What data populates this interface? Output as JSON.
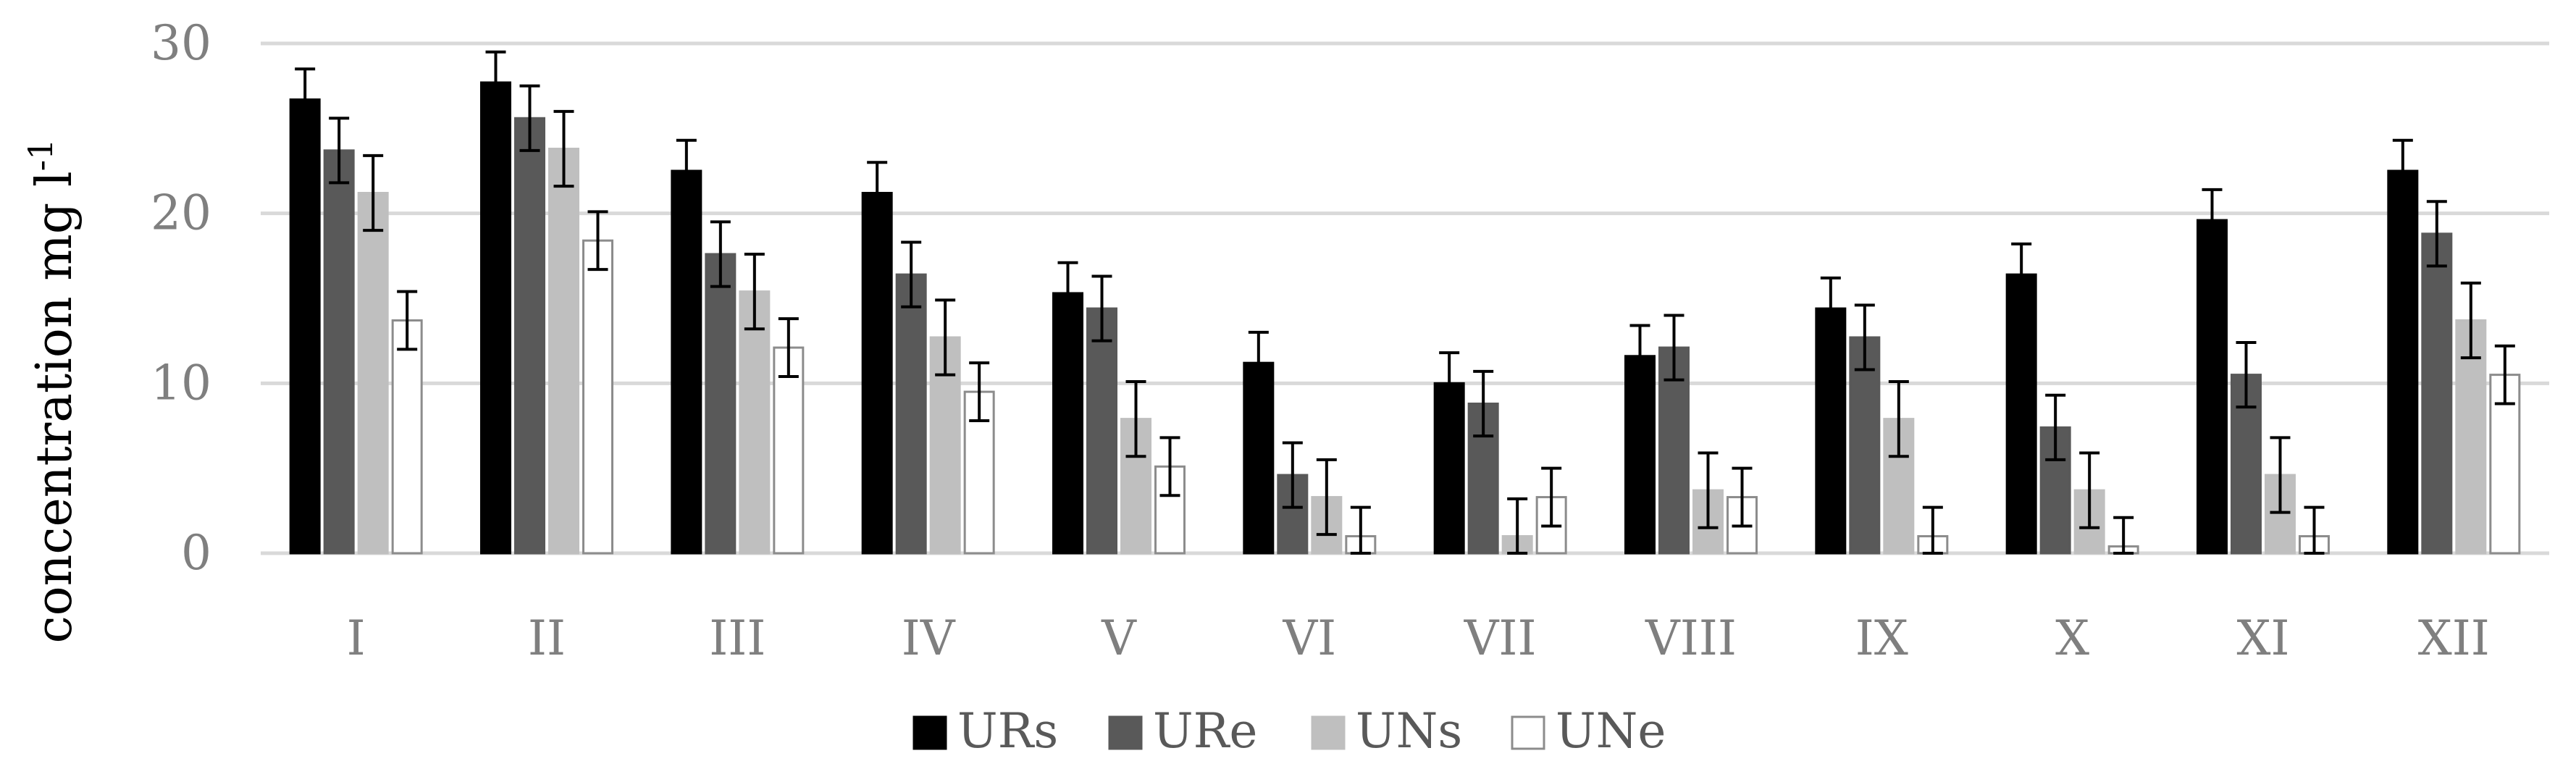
{
  "chart_data": {
    "type": "bar",
    "categories": [
      "I",
      "II",
      "III",
      "IV",
      "V",
      "VI",
      "VII",
      "VIII",
      "IX",
      "X",
      "XI",
      "XII"
    ],
    "series": [
      {
        "name": "URs",
        "color": "#000000",
        "border": "#000000",
        "values": [
          26.7,
          27.7,
          22.5,
          21.2,
          15.3,
          11.2,
          10.0,
          11.6,
          14.4,
          16.4,
          19.6,
          22.5
        ],
        "errors": [
          1.8,
          1.8,
          1.8,
          1.8,
          1.8,
          1.8,
          1.8,
          1.8,
          1.8,
          1.8,
          1.8,
          1.8
        ]
      },
      {
        "name": "URe",
        "color": "#595959",
        "border": "#595959",
        "values": [
          23.7,
          25.6,
          17.6,
          16.4,
          14.4,
          4.6,
          8.8,
          12.1,
          12.7,
          7.4,
          10.5,
          18.8
        ],
        "errors": [
          1.9,
          1.9,
          1.9,
          1.9,
          1.9,
          1.9,
          1.9,
          1.9,
          1.9,
          1.9,
          1.9,
          1.9
        ]
      },
      {
        "name": "UNs",
        "color": "#bfbfbf",
        "border": "#bfbfbf",
        "values": [
          21.2,
          23.8,
          15.4,
          12.7,
          7.9,
          3.3,
          1.0,
          3.7,
          7.9,
          3.7,
          4.6,
          13.7
        ],
        "errors": [
          2.2,
          2.2,
          2.2,
          2.2,
          2.2,
          2.2,
          2.2,
          2.2,
          2.2,
          2.2,
          2.2,
          2.2
        ]
      },
      {
        "name": "UNe",
        "color": "#ffffff",
        "border": "#8c8c8c",
        "values": [
          13.7,
          18.4,
          12.1,
          9.5,
          5.1,
          1.0,
          3.3,
          3.3,
          1.0,
          0.4,
          1.0,
          10.5
        ],
        "errors": [
          1.7,
          1.7,
          1.7,
          1.7,
          1.7,
          1.7,
          1.7,
          1.7,
          1.7,
          1.7,
          1.7,
          1.7
        ]
      }
    ],
    "title": "",
    "xlabel": "",
    "ylabel": "concentration mg l-1",
    "ylabel_main": "concentration mg l",
    "ylabel_sup": "-1",
    "ylim": [
      0,
      30
    ],
    "yticks": [
      "0",
      "10",
      "20",
      "30"
    ],
    "grid": true,
    "legend_position": "bottom-center"
  }
}
